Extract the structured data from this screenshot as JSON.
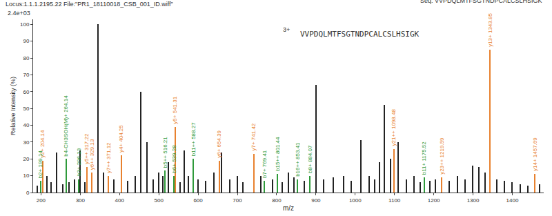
{
  "chart_data": {
    "type": "stem",
    "title": "Locus:1.1.1.2195.22 File:\"PR1_18110018_CSB_001_ID.wiff\"",
    "subtitle": "Seq: VVPDQLMTFSGTNDPCALCSLHSIGK",
    "annotations": [
      "2.4e+03",
      "3+",
      "VVPDQLMTFSGTNDPCALCSLHSIGK"
    ],
    "x_label": "m/z",
    "y_label": "Relative Intensity (%)",
    "xlim": [
      180,
      1480
    ],
    "xticks": [
      200,
      300,
      400,
      500,
      600,
      700,
      800,
      900,
      1000,
      1100,
      1200,
      1300,
      1400
    ],
    "ylim": [
      0,
      103
    ],
    "yticks": [
      0,
      10,
      20,
      30,
      40,
      50,
      60,
      70,
      80,
      90,
      100
    ],
    "grid": false,
    "series": [
      {
        "color": "#e8812e",
        "x": [
          204.14,
          317.22,
          329.13,
          371.12,
          404.25,
          541.31,
          654.39,
          741.42,
          1098.48,
          1219.59,
          1343.85,
          1457.69
        ],
        "values": [
          19,
          15,
          12,
          10,
          22,
          39,
          19,
          23,
          26,
          9,
          85,
          11
        ],
        "labels": [
          "y2+ 204.14",
          "y5++ 317.22",
          "y6++ 329.13",
          "y7++ 371.12",
          "y4+ 404.25",
          "y5+ 541.31",
          "y6+ 654.39",
          "y7+ 741.42",
          "y21++ 1098.48",
          "y23++ 1219.59",
          "y13+ 1343.85",
          "y14+ 1457.69"
        ]
      },
      {
        "color": "#2e9a3a",
        "x": [
          199.14,
          264.14,
          296.13,
          516.21,
          539.28,
          588.27,
          769.41,
          801.44,
          853.41,
          884.07,
          1175.52
        ],
        "values": [
          7,
          20,
          8,
          13,
          10,
          20,
          7,
          11,
          8,
          10,
          9
        ],
        "labels": [
          "b2+ 199.14",
          "b4-CH3SOH(M)+ 264.14",
          "b3+ 296.13",
          "b5++ 516.21",
          "b6+ 539.28",
          "b11++ 588.27",
          "b7+ 769.41",
          "b15++ 801.44",
          "b16++ 853.41",
          "b8+ 884.07",
          "b11+ 1175.52"
        ]
      },
      {
        "color": "#222222",
        "x": [
          190,
          215,
          225,
          240,
          255,
          272,
          285,
          300,
          312,
          345,
          360,
          385,
          420,
          440,
          455,
          470,
          485,
          500,
          510,
          525,
          555,
          565,
          575,
          600,
          620,
          640,
          660,
          680,
          700,
          715,
          760,
          790,
          815,
          830,
          845,
          870,
          900,
          920,
          945,
          970,
          990,
          1015,
          1035,
          1050,
          1062,
          1075,
          1090,
          1110,
          1130,
          1150,
          1165,
          1190,
          1205,
          1240,
          1260,
          1280,
          1300,
          1315,
          1330,
          1360,
          1380,
          1400,
          1420,
          1440,
          1470
        ],
        "values": [
          4,
          10,
          6,
          24,
          5,
          6,
          8,
          25,
          6,
          100,
          12,
          8,
          7,
          10,
          60,
          30,
          8,
          12,
          10,
          18,
          6,
          25,
          10,
          8,
          7,
          12,
          24,
          8,
          10,
          6,
          10,
          8,
          6,
          12,
          9,
          7,
          64,
          8,
          9,
          10,
          7,
          31,
          10,
          8,
          18,
          52,
          20,
          30,
          8,
          10,
          6,
          7,
          8,
          7,
          10,
          8,
          16,
          15,
          12,
          8,
          7,
          6,
          5,
          4,
          5
        ]
      }
    ]
  }
}
